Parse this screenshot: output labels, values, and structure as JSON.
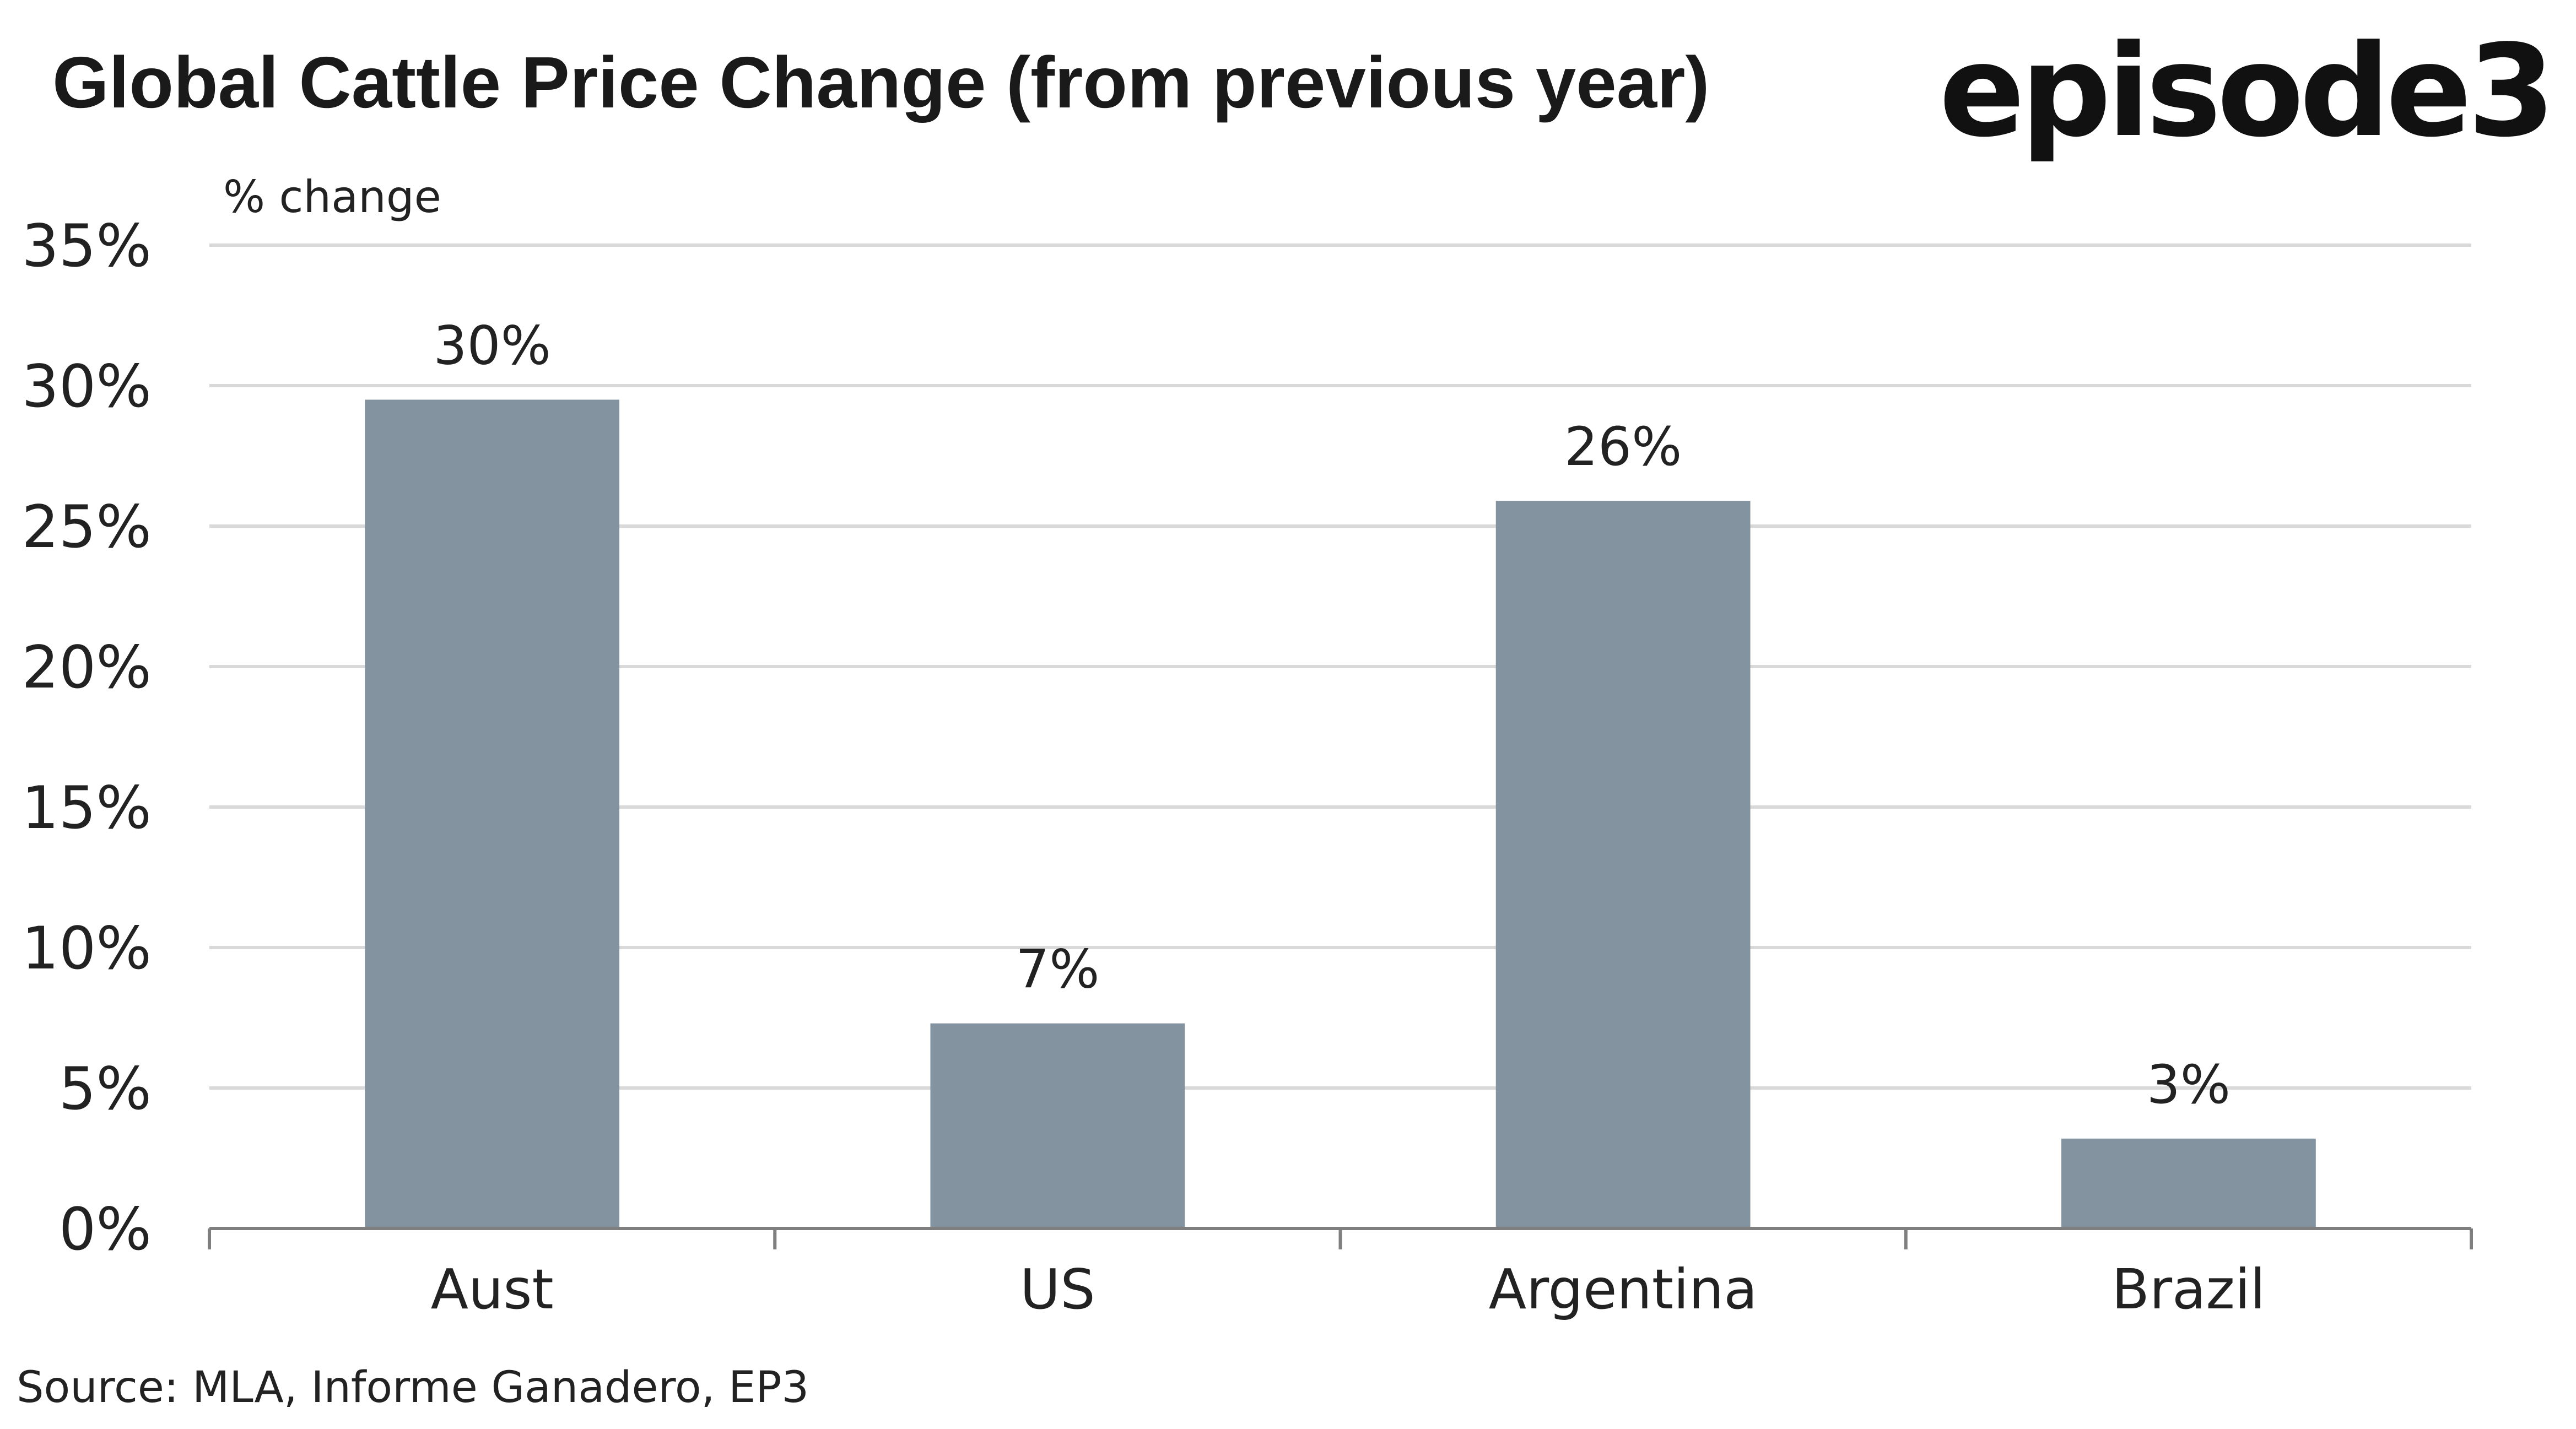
{
  "brand": {
    "logo_text": "episode3"
  },
  "chart_data": {
    "type": "bar",
    "title": "Global Cattle Price Change (from previous year)",
    "ylabel": "% change",
    "xlabel": "",
    "categories": [
      "Aust",
      "US",
      "Argentina",
      "Brazil"
    ],
    "values": [
      29.5,
      7.3,
      25.9,
      3.2
    ],
    "data_labels": [
      "30%",
      "7%",
      "26%",
      "3%"
    ],
    "ylim": [
      0,
      35
    ],
    "yticks": [
      0,
      5,
      10,
      15,
      20,
      25,
      30,
      35
    ],
    "ytick_labels": [
      "0%",
      "5%",
      "10%",
      "15%",
      "20%",
      "25%",
      "30%",
      "35%"
    ],
    "bar_color": "#8394a0",
    "grid": true,
    "legend": "none",
    "source": "Source:  MLA, Informe Ganadero, EP3"
  }
}
